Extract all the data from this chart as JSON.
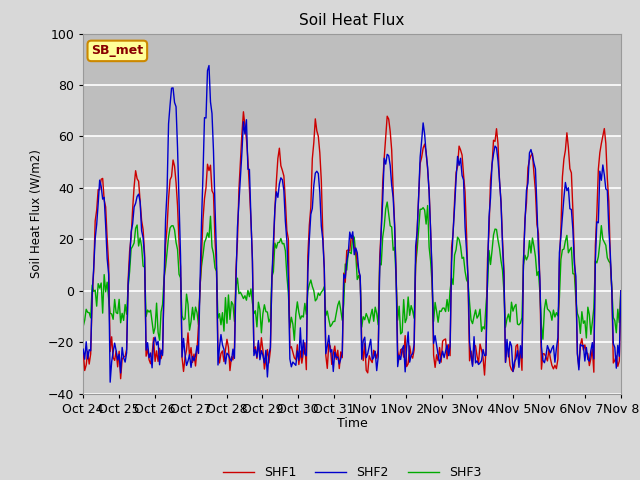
{
  "title": "Soil Heat Flux",
  "ylabel": "Soil Heat Flux (W/m2)",
  "xlabel": "Time",
  "ylim": [
    -40,
    100
  ],
  "background_color": "#d8d8d8",
  "plot_bg_color": "#d8d8d8",
  "grid_color": "white",
  "shaded_region_lower": [
    0,
    60
  ],
  "shaded_region_upper": [
    60,
    100
  ],
  "tick_labels": [
    "Oct 24",
    "Oct 25",
    "Oct 26",
    "Oct 27",
    "Oct 28",
    "Oct 29",
    "Oct 30",
    "Oct 31",
    "Nov 1",
    "Nov 2",
    "Nov 3",
    "Nov 4",
    "Nov 5",
    "Nov 6",
    "Nov 7",
    "Nov 8"
  ],
  "series": [
    "SHF1",
    "SHF2",
    "SHF3"
  ],
  "colors": [
    "#cc0000",
    "#0000cc",
    "#00aa00"
  ],
  "label_box_text": "SB_met",
  "label_box_bg": "#ffff99",
  "label_box_edge": "#cc8800",
  "label_box_text_color": "#880000",
  "n_days": 15,
  "day_amp1": [
    45,
    45,
    50,
    50,
    65,
    53,
    65,
    20,
    65,
    60,
    58,
    58,
    55,
    57,
    65
  ],
  "day_amp2": [
    38,
    38,
    82,
    84,
    65,
    46,
    47,
    20,
    55,
    60,
    52,
    55,
    57,
    42,
    50
  ],
  "day_amp3": [
    0,
    22,
    25,
    25,
    0,
    20,
    0,
    20,
    30,
    35,
    18,
    18,
    20,
    20,
    22
  ],
  "night_val1": -25,
  "night_val2": -25,
  "night_val3": -10
}
